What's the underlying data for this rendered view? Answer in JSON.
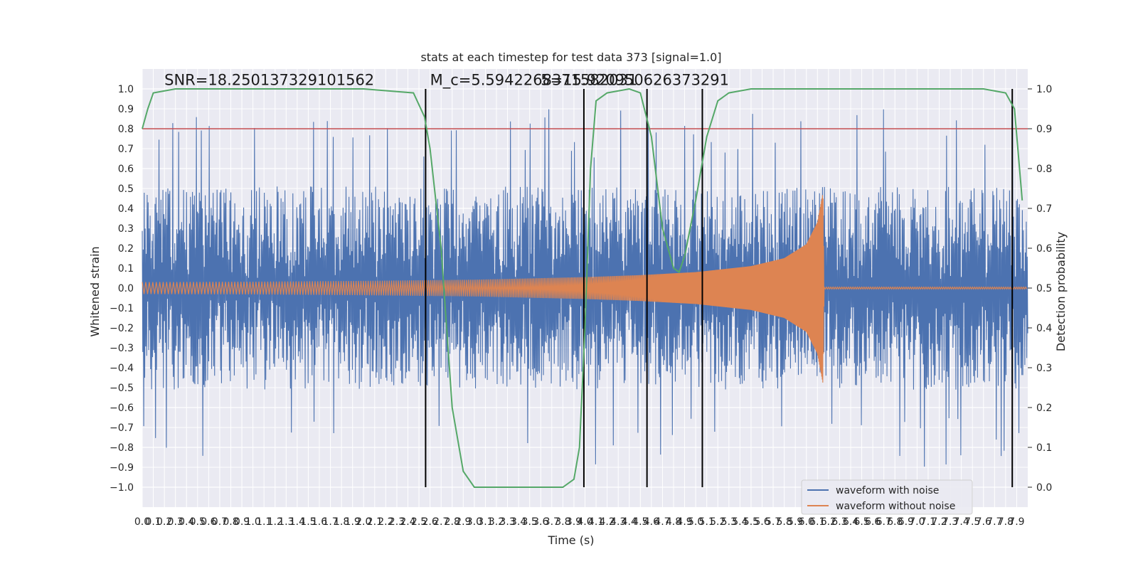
{
  "chart_data": {
    "type": "line",
    "title": "stats at each timestep for test data 373 [signal=1.0]",
    "xlabel": "Time (s)",
    "ylabel": "Whitened strain",
    "y2label": "Detection probability",
    "xlim": [
      0.0,
      8.0
    ],
    "ylim": [
      -1.1,
      1.1
    ],
    "y2lim": [
      -0.05,
      1.05
    ],
    "x_ticks": [
      "0.0",
      "0.1",
      "0.2",
      "0.3",
      "0.4",
      "0.5",
      "0.6",
      "0.7",
      "0.8",
      "0.9",
      "1.0",
      "1.1",
      "1.2",
      "1.3",
      "1.4",
      "1.5",
      "1.6",
      "1.7",
      "1.8",
      "1.9",
      "2.0",
      "2.1",
      "2.2",
      "2.3",
      "2.4",
      "2.5",
      "2.6",
      "2.7",
      "2.8",
      "2.9",
      "3.0",
      "3.1",
      "3.2",
      "3.3",
      "3.4",
      "3.5",
      "3.6",
      "3.7",
      "3.8",
      "3.9",
      "4.0",
      "4.1",
      "4.2",
      "4.3",
      "4.4",
      "4.5",
      "4.6",
      "4.7",
      "4.8",
      "4.9",
      "5.0",
      "5.1",
      "5.2",
      "5.3",
      "5.4",
      "5.5",
      "5.6",
      "5.7",
      "5.8",
      "5.9",
      "6.0",
      "6.1",
      "6.2",
      "6.3",
      "6.4",
      "6.5",
      "6.6",
      "6.7",
      "6.8",
      "6.9",
      "7.0",
      "7.1",
      "7.2",
      "7.3",
      "7.4",
      "7.5",
      "7.6",
      "7.7",
      "7.8",
      "7.9"
    ],
    "y_ticks": [
      "1.0",
      "0.9",
      "0.8",
      "0.7",
      "0.6",
      "0.5",
      "0.4",
      "0.3",
      "0.2",
      "0.1",
      "0.0",
      "−0.1",
      "−0.2",
      "−0.3",
      "−0.4",
      "−0.5",
      "−0.6",
      "−0.7",
      "−0.8",
      "−0.9",
      "−1.0"
    ],
    "y2_ticks": [
      "1.0",
      "0.9",
      "0.8",
      "0.7",
      "0.6",
      "0.5",
      "0.4",
      "0.3",
      "0.2",
      "0.1",
      "0.0"
    ],
    "threshold": {
      "axis": "y2",
      "value": 0.9,
      "color": "#c44e52"
    },
    "vertical_lines": [
      2.56,
      3.99,
      4.56,
      5.06,
      7.86
    ],
    "annotations": [
      {
        "text": "SNR=18.250137329101562",
        "x": 0.2,
        "y": 1.02
      },
      {
        "text": "$M_c$=5.5942268371582031",
        "x": 2.6,
        "y": 1.02,
        "display": "M_c=5.5942268371582031"
      },
      {
        "text": "5=15.920950626373291",
        "x": 3.6,
        "y": 1.02
      }
    ],
    "series": [
      {
        "name": "waveform with noise",
        "color": "#4c72b0",
        "description": "noise-dominated whitened strain, amplitude ~0.6 with peaks to ±0.85",
        "envelope_upper": 0.6,
        "envelope_lower": -0.6
      },
      {
        "name": "waveform without noise",
        "color": "#dd8452",
        "description": "chirp rising from ±0.03 at t=0 to ±0.48 at t=6.15, then ~0 after merger",
        "x": [
          0.0,
          1.0,
          2.0,
          3.0,
          4.0,
          4.5,
          5.0,
          5.5,
          5.8,
          6.0,
          6.1,
          6.15,
          6.16,
          8.0
        ],
        "amplitude": [
          0.03,
          0.032,
          0.036,
          0.042,
          0.055,
          0.065,
          0.08,
          0.11,
          0.15,
          0.22,
          0.33,
          0.48,
          0.005,
          0.005
        ]
      },
      {
        "name": "detection probability",
        "color": "#55a868",
        "axis": "y2",
        "x": [
          0.0,
          0.05,
          0.1,
          0.3,
          1.0,
          2.0,
          2.45,
          2.55,
          2.6,
          2.7,
          2.8,
          2.9,
          3.0,
          3.2,
          3.5,
          3.8,
          3.9,
          3.95,
          4.0,
          4.05,
          4.1,
          4.2,
          4.4,
          4.5,
          4.6,
          4.7,
          4.8,
          4.85,
          4.9,
          5.0,
          5.1,
          5.2,
          5.3,
          5.5,
          6.0,
          7.0,
          7.6,
          7.8,
          7.88,
          7.95
        ],
        "y": [
          0.9,
          0.95,
          0.99,
          1.0,
          1.0,
          1.0,
          0.99,
          0.93,
          0.85,
          0.6,
          0.2,
          0.04,
          0.0,
          0.0,
          0.0,
          0.0,
          0.02,
          0.1,
          0.4,
          0.8,
          0.97,
          0.99,
          1.0,
          0.99,
          0.88,
          0.65,
          0.55,
          0.54,
          0.58,
          0.72,
          0.88,
          0.97,
          0.99,
          1.0,
          1.0,
          1.0,
          1.0,
          0.99,
          0.95,
          0.72
        ]
      }
    ],
    "legend": {
      "position": "lower-right",
      "entries": [
        "waveform with noise",
        "waveform without noise"
      ]
    }
  }
}
